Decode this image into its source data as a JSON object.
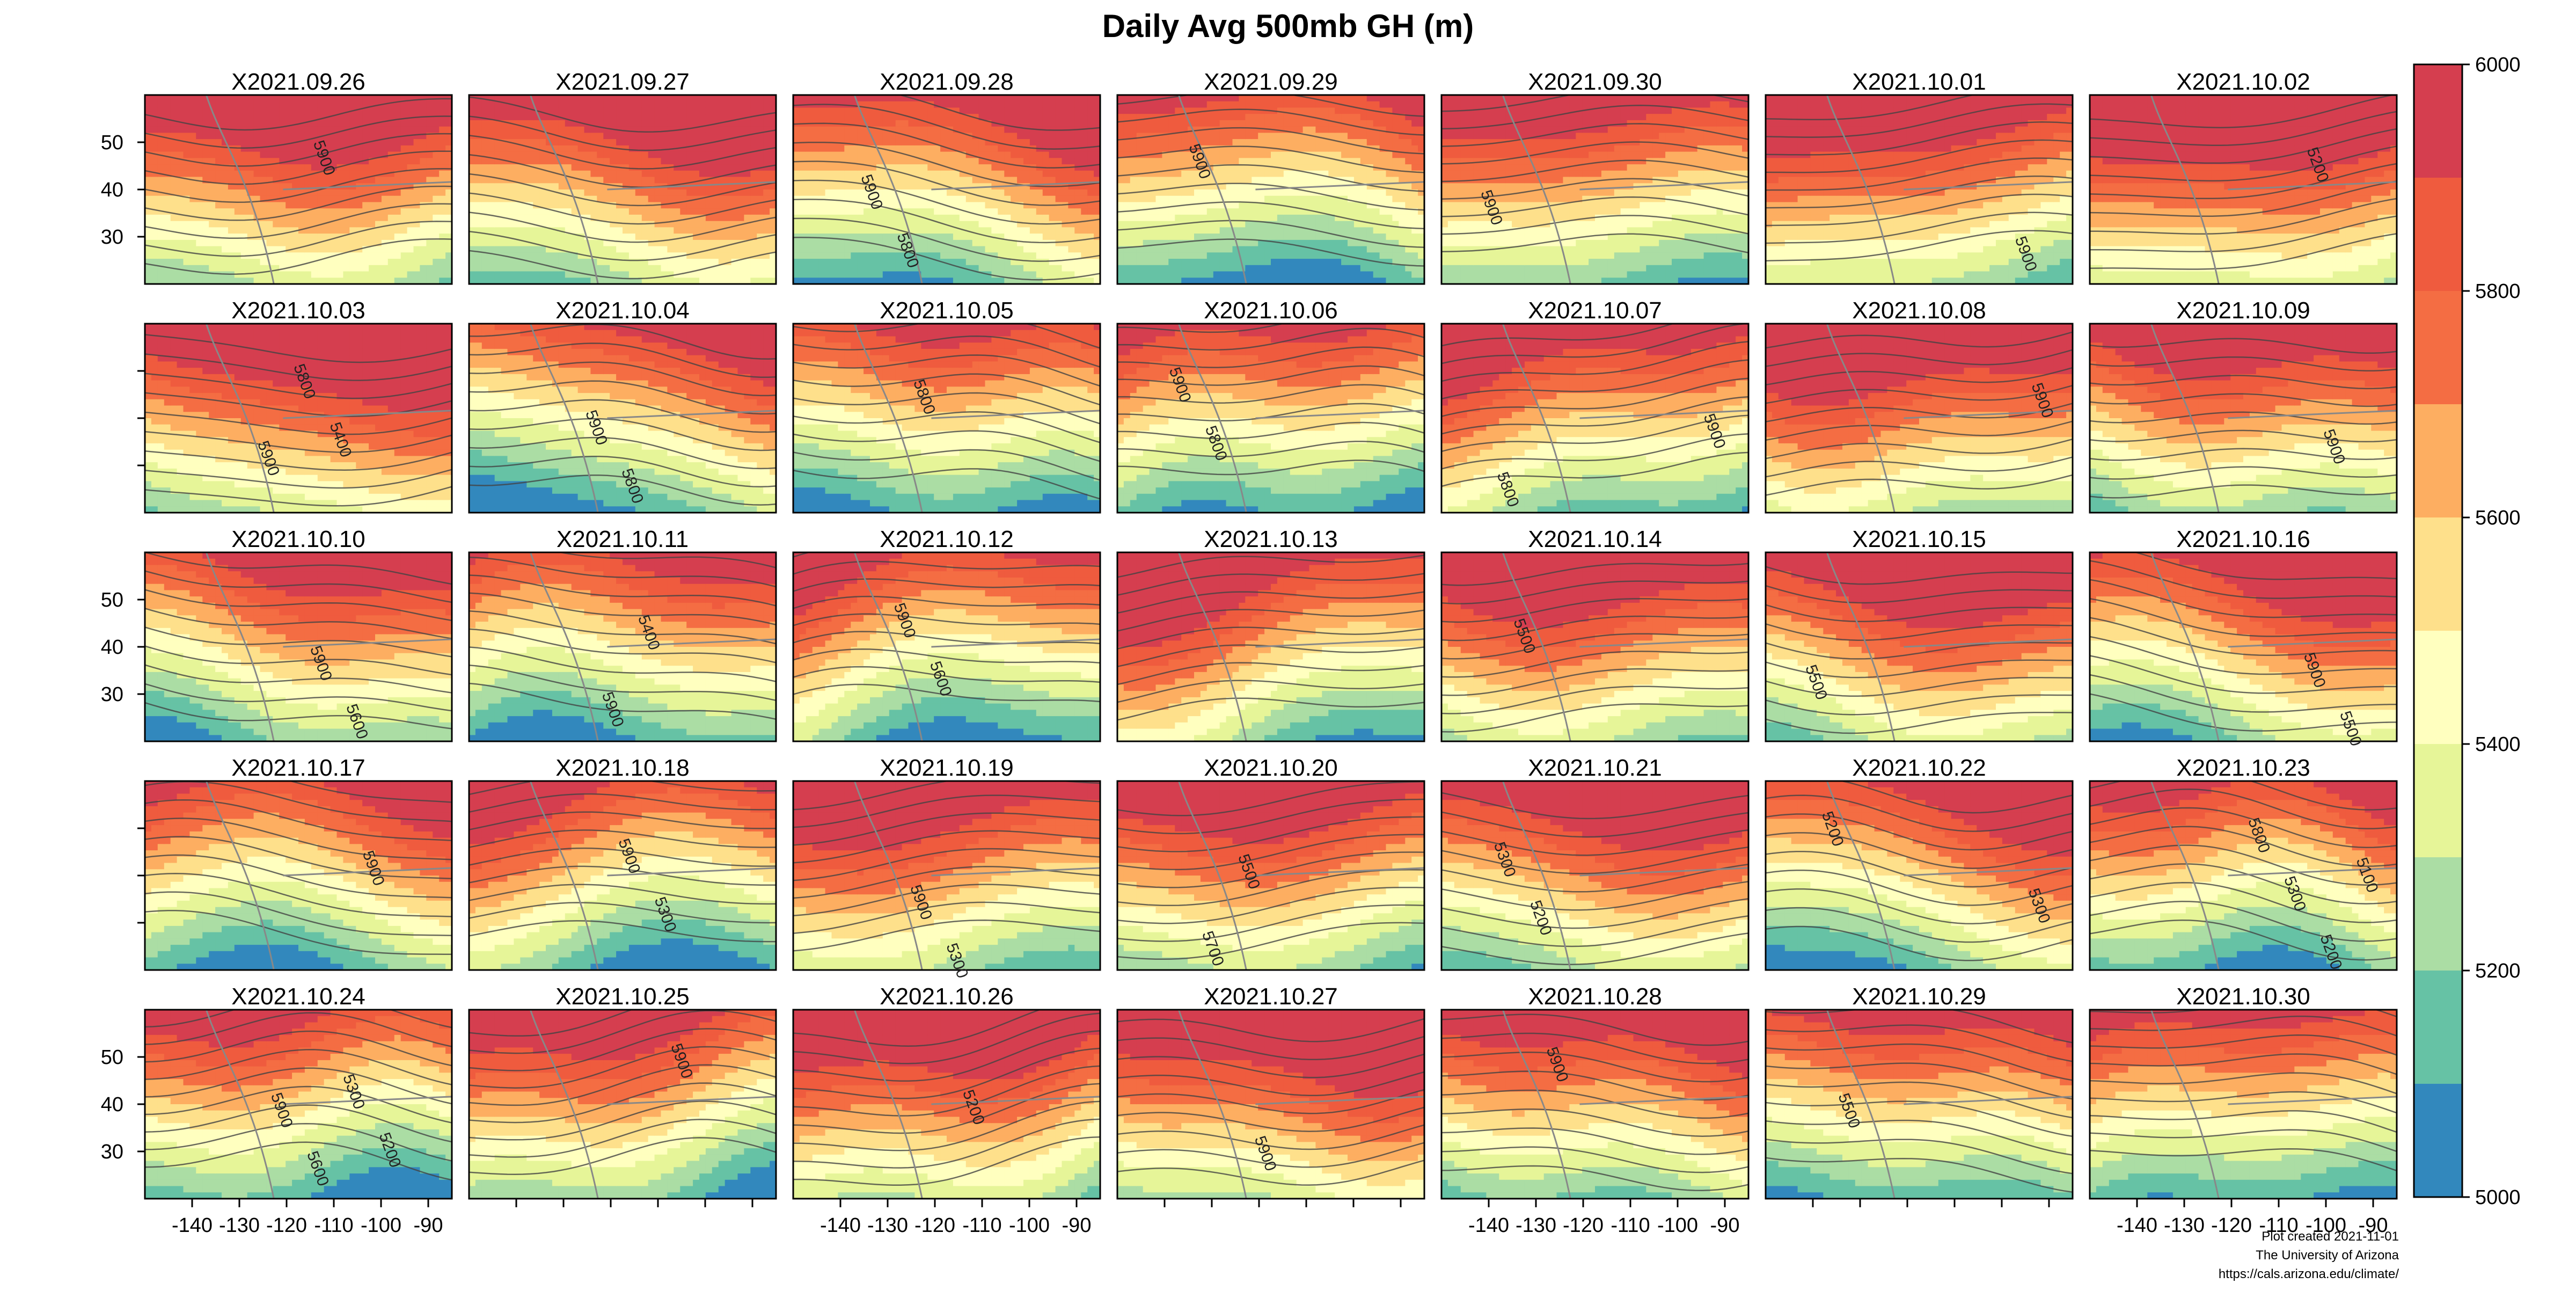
{
  "title": "Daily Avg 500mb GH (m)",
  "credits": [
    "Plot created 2021-11-01",
    "The University of Arizona",
    "https://cals.arizona.edu/climate/"
  ],
  "chart_data": {
    "type": "contour",
    "variable": "500mb geopotential height (m)",
    "layout": {
      "rows": 5,
      "cols": 7
    },
    "panels": [
      "X2021.09.26",
      "X2021.09.27",
      "X2021.09.28",
      "X2021.09.29",
      "X2021.09.30",
      "X2021.10.01",
      "X2021.10.02",
      "X2021.10.03",
      "X2021.10.04",
      "X2021.10.05",
      "X2021.10.06",
      "X2021.10.07",
      "X2021.10.08",
      "X2021.10.09",
      "X2021.10.10",
      "X2021.10.11",
      "X2021.10.12",
      "X2021.10.13",
      "X2021.10.14",
      "X2021.10.15",
      "X2021.10.16",
      "X2021.10.17",
      "X2021.10.18",
      "X2021.10.19",
      "X2021.10.20",
      "X2021.10.21",
      "X2021.10.22",
      "X2021.10.23",
      "X2021.10.24",
      "X2021.10.25",
      "X2021.10.26",
      "X2021.10.27",
      "X2021.10.28",
      "X2021.10.29",
      "X2021.10.30"
    ],
    "xlim": [
      -150,
      -85
    ],
    "ylim": [
      20,
      60
    ],
    "x_ticks": [
      "-140",
      "-130",
      "-120",
      "-110",
      "-100",
      "-90"
    ],
    "y_ticks": [
      "30",
      "40",
      "50"
    ],
    "x_ticks_shown_on_columns": [
      1,
      3,
      5,
      7
    ],
    "y_ticks_shown_on_rows": [
      1,
      3,
      5
    ],
    "colorbar": {
      "min": 5000,
      "max": 6000,
      "levels": [
        5000,
        5100,
        5200,
        5300,
        5400,
        5500,
        5600,
        5700,
        5800,
        5900,
        6000
      ],
      "tick_labels": [
        "5000",
        "5200",
        "5400",
        "5600",
        "5800",
        "6000"
      ],
      "colors": [
        "#3288bd",
        "#66c2a5",
        "#abdda4",
        "#e6f598",
        "#ffffbf",
        "#fee08b",
        "#fdae61",
        "#f46d43",
        "#ef5b3e",
        "#d53e4f"
      ]
    },
    "contour_labels": [
      {
        "panel": 1,
        "text": "5900"
      },
      {
        "panel": 3,
        "text": "5800"
      },
      {
        "panel": 3,
        "text": "5900"
      },
      {
        "panel": 4,
        "text": "5900"
      },
      {
        "panel": 5,
        "text": "5900"
      },
      {
        "panel": 6,
        "text": "5900"
      },
      {
        "panel": 7,
        "text": "5200"
      },
      {
        "panel": 8,
        "text": "5400"
      },
      {
        "panel": 8,
        "text": "5800"
      },
      {
        "panel": 8,
        "text": "5900"
      },
      {
        "panel": 9,
        "text": "5800"
      },
      {
        "panel": 9,
        "text": "5900"
      },
      {
        "panel": 10,
        "text": "5800"
      },
      {
        "panel": 11,
        "text": "5800"
      },
      {
        "panel": 11,
        "text": "5900"
      },
      {
        "panel": 12,
        "text": "5800"
      },
      {
        "panel": 12,
        "text": "5900"
      },
      {
        "panel": 13,
        "text": "5900"
      },
      {
        "panel": 14,
        "text": "5900"
      },
      {
        "panel": 15,
        "text": "5600"
      },
      {
        "panel": 15,
        "text": "5900"
      },
      {
        "panel": 16,
        "text": "5400"
      },
      {
        "panel": 16,
        "text": "5900"
      },
      {
        "panel": 17,
        "text": "5600"
      },
      {
        "panel": 17,
        "text": "5900"
      },
      {
        "panel": 19,
        "text": "5500"
      },
      {
        "panel": 20,
        "text": "5500"
      },
      {
        "panel": 21,
        "text": "5500"
      },
      {
        "panel": 21,
        "text": "5900"
      },
      {
        "panel": 22,
        "text": "5900"
      },
      {
        "panel": 23,
        "text": "5300"
      },
      {
        "panel": 23,
        "text": "5900"
      },
      {
        "panel": 24,
        "text": "5300"
      },
      {
        "panel": 24,
        "text": "5900"
      },
      {
        "panel": 25,
        "text": "5500"
      },
      {
        "panel": 25,
        "text": "5700"
      },
      {
        "panel": 26,
        "text": "5200"
      },
      {
        "panel": 26,
        "text": "5300"
      },
      {
        "panel": 27,
        "text": "5200"
      },
      {
        "panel": 27,
        "text": "5300"
      },
      {
        "panel": 28,
        "text": "5100"
      },
      {
        "panel": 28,
        "text": "5200"
      },
      {
        "panel": 28,
        "text": "5300"
      },
      {
        "panel": 28,
        "text": "5800"
      },
      {
        "panel": 29,
        "text": "5200"
      },
      {
        "panel": 29,
        "text": "5300"
      },
      {
        "panel": 29,
        "text": "5600"
      },
      {
        "panel": 29,
        "text": "5900"
      },
      {
        "panel": 30,
        "text": "5900"
      },
      {
        "panel": 31,
        "text": "5200"
      },
      {
        "panel": 32,
        "text": "5900"
      },
      {
        "panel": 33,
        "text": "5900"
      },
      {
        "panel": 34,
        "text": "5500"
      }
    ]
  }
}
